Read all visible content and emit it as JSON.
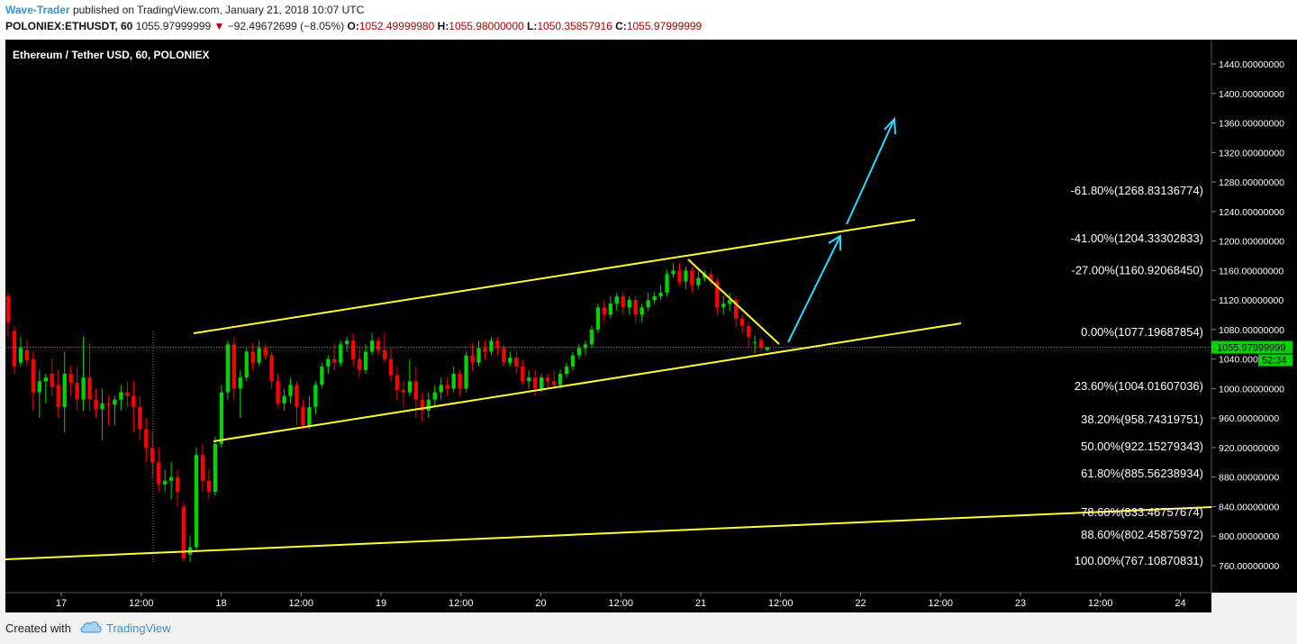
{
  "header": {
    "author": "Wave-Trader",
    "published": "published on TradingView.com, January 21, 2018 10:07 UTC",
    "symbol": "POLONIEX:ETHUSDT, 60",
    "last": "1055.97999999",
    "change_arrow": "▼",
    "change": "−92.49672699 (−8.05%)",
    "o_label": "O:",
    "o": "1052.49999980",
    "h_label": "H:",
    "h": "1055.98000000",
    "l_label": "L:",
    "l": "1050.35857916",
    "c_label": "C:",
    "c": "1055.97999999"
  },
  "chart_title": "Ethereum / Tether USD, 60, POLONIEX",
  "footer": {
    "created_with": "Created with",
    "brand": "TradingView"
  },
  "colors": {
    "up": "#00d400",
    "down": "#ff0000",
    "trendline": "#ffff33",
    "arrow": "#2fd9ff",
    "background": "#000000",
    "price_tag": "#00d400"
  },
  "chart_data": {
    "type": "candlestick",
    "title": "Ethereum / Tether USD, 60, POLONIEX",
    "y_axis": {
      "ticks": [
        "1440.00000000",
        "1400.00000000",
        "1360.00000000",
        "1320.00000000",
        "1280.00000000",
        "1240.00000000",
        "1200.00000000",
        "1160.00000000",
        "1120.00000000",
        "1080.00000000",
        "1040.00000000",
        "1000.00000000",
        "960.00000000",
        "920.00000000",
        "880.00000000",
        "840.00000000",
        "800.00000000",
        "760.00000000"
      ],
      "range": [
        730,
        1470
      ]
    },
    "x_axis": {
      "ticks": [
        "17",
        "12:00",
        "18",
        "12:00",
        "19",
        "12:00",
        "20",
        "12:00",
        "21",
        "12:00",
        "22",
        "12:00",
        "23",
        "12:00",
        "24"
      ]
    },
    "last_price": {
      "label": "1055.97999999",
      "value": 1055.98
    },
    "countdown": {
      "label": "52:34"
    },
    "fib_levels": [
      {
        "label": "-61.80%(1268.83136774)",
        "value": 1268.83
      },
      {
        "label": "-41.00%(1204.33302833)",
        "value": 1204.33
      },
      {
        "label": "-27.00%(1160.92068450)",
        "value": 1160.92
      },
      {
        "label": "0.00%(1077.19687854)",
        "value": 1077.2
      },
      {
        "label": "23.60%(1004.01607036)",
        "value": 1004.02
      },
      {
        "label": "38.20%(958.74319751)",
        "value": 958.74
      },
      {
        "label": "50.00%(922.15279343)",
        "value": 922.15
      },
      {
        "label": "61.80%(885.56238934)",
        "value": 885.56
      },
      {
        "label": "78.60%(833.46757674)",
        "value": 833.47
      },
      {
        "label": "88.60%(802.45875972)",
        "value": 802.46
      },
      {
        "label": "100.00%(767.10870831)",
        "value": 767.11
      }
    ],
    "candles": [
      {
        "o": 1125,
        "c": 1090,
        "h": 1130,
        "l": 1070
      },
      {
        "o": 1078,
        "c": 1030,
        "h": 1085,
        "l": 1020
      },
      {
        "o": 1035,
        "c": 1055,
        "h": 1070,
        "l": 1030
      },
      {
        "o": 1052,
        "c": 1038,
        "h": 1065,
        "l": 1030
      },
      {
        "o": 1040,
        "c": 995,
        "h": 1050,
        "l": 970
      },
      {
        "o": 995,
        "c": 1010,
        "h": 1025,
        "l": 960
      },
      {
        "o": 1010,
        "c": 1015,
        "h": 1020,
        "l": 980
      },
      {
        "o": 1020,
        "c": 1002,
        "h": 1040,
        "l": 990
      },
      {
        "o": 1005,
        "c": 975,
        "h": 1025,
        "l": 960
      },
      {
        "o": 975,
        "c": 1020,
        "h": 1050,
        "l": 940
      },
      {
        "o": 1020,
        "c": 1008,
        "h": 1030,
        "l": 990
      },
      {
        "o": 1008,
        "c": 985,
        "h": 1030,
        "l": 970
      },
      {
        "o": 985,
        "c": 1015,
        "h": 1070,
        "l": 970
      },
      {
        "o": 1015,
        "c": 985,
        "h": 1060,
        "l": 970
      },
      {
        "o": 985,
        "c": 972,
        "h": 1000,
        "l": 960
      },
      {
        "o": 972,
        "c": 980,
        "h": 1000,
        "l": 930
      },
      {
        "o": 980,
        "c": 978,
        "h": 990,
        "l": 950
      },
      {
        "o": 978,
        "c": 985,
        "h": 990,
        "l": 950
      },
      {
        "o": 985,
        "c": 995,
        "h": 1005,
        "l": 970
      },
      {
        "o": 995,
        "c": 990,
        "h": 1010,
        "l": 975
      },
      {
        "o": 990,
        "c": 975,
        "h": 1010,
        "l": 940
      },
      {
        "o": 975,
        "c": 945,
        "h": 990,
        "l": 930
      },
      {
        "o": 945,
        "c": 920,
        "h": 960,
        "l": 900
      },
      {
        "o": 920,
        "c": 900,
        "h": 940,
        "l": 880
      },
      {
        "o": 900,
        "c": 870,
        "h": 920,
        "l": 860
      },
      {
        "o": 870,
        "c": 875,
        "h": 890,
        "l": 860
      },
      {
        "o": 875,
        "c": 880,
        "h": 900,
        "l": 850
      },
      {
        "o": 880,
        "c": 860,
        "h": 890,
        "l": 840
      },
      {
        "o": 840,
        "c": 770,
        "h": 845,
        "l": 765
      },
      {
        "o": 775,
        "c": 785,
        "h": 800,
        "l": 765
      },
      {
        "o": 785,
        "c": 910,
        "h": 920,
        "l": 780
      },
      {
        "o": 910,
        "c": 875,
        "h": 925,
        "l": 860
      },
      {
        "o": 875,
        "c": 860,
        "h": 890,
        "l": 850
      },
      {
        "o": 860,
        "c": 925,
        "h": 935,
        "l": 855
      },
      {
        "o": 925,
        "c": 995,
        "h": 1005,
        "l": 920
      },
      {
        "o": 995,
        "c": 1060,
        "h": 1065,
        "l": 985
      },
      {
        "o": 1060,
        "c": 1000,
        "h": 1070,
        "l": 985
      },
      {
        "o": 1000,
        "c": 1015,
        "h": 1025,
        "l": 960
      },
      {
        "o": 1015,
        "c": 1050,
        "h": 1055,
        "l": 1010
      },
      {
        "o": 1050,
        "c": 1035,
        "h": 1062,
        "l": 1025
      },
      {
        "o": 1035,
        "c": 1055,
        "h": 1065,
        "l": 1030
      },
      {
        "o": 1055,
        "c": 1045,
        "h": 1060,
        "l": 1040
      },
      {
        "o": 1045,
        "c": 1010,
        "h": 1050,
        "l": 1000
      },
      {
        "o": 1010,
        "c": 980,
        "h": 1020,
        "l": 975
      },
      {
        "o": 980,
        "c": 990,
        "h": 1000,
        "l": 970
      },
      {
        "o": 990,
        "c": 1005,
        "h": 1015,
        "l": 980
      },
      {
        "o": 1005,
        "c": 975,
        "h": 1010,
        "l": 950
      },
      {
        "o": 975,
        "c": 950,
        "h": 985,
        "l": 945
      },
      {
        "o": 950,
        "c": 975,
        "h": 990,
        "l": 945
      },
      {
        "o": 975,
        "c": 1005,
        "h": 1010,
        "l": 965
      },
      {
        "o": 1005,
        "c": 1030,
        "h": 1035,
        "l": 1000
      },
      {
        "o": 1030,
        "c": 1040,
        "h": 1045,
        "l": 1020
      },
      {
        "o": 1040,
        "c": 1035,
        "h": 1060,
        "l": 1025
      },
      {
        "o": 1035,
        "c": 1060,
        "h": 1065,
        "l": 1030
      },
      {
        "o": 1060,
        "c": 1065,
        "h": 1070,
        "l": 1050
      },
      {
        "o": 1065,
        "c": 1040,
        "h": 1075,
        "l": 1030
      },
      {
        "o": 1040,
        "c": 1025,
        "h": 1055,
        "l": 1015
      },
      {
        "o": 1025,
        "c": 1050,
        "h": 1060,
        "l": 1020
      },
      {
        "o": 1050,
        "c": 1065,
        "h": 1075,
        "l": 1045
      },
      {
        "o": 1065,
        "c": 1052,
        "h": 1070,
        "l": 1045
      },
      {
        "o": 1052,
        "c": 1040,
        "h": 1075,
        "l": 1035
      },
      {
        "o": 1040,
        "c": 1018,
        "h": 1055,
        "l": 1010
      },
      {
        "o": 1018,
        "c": 998,
        "h": 1030,
        "l": 985
      },
      {
        "o": 998,
        "c": 995,
        "h": 1010,
        "l": 975
      },
      {
        "o": 995,
        "c": 1010,
        "h": 1040,
        "l": 990
      },
      {
        "o": 1010,
        "c": 985,
        "h": 1030,
        "l": 960
      },
      {
        "o": 985,
        "c": 970,
        "h": 995,
        "l": 955
      },
      {
        "o": 970,
        "c": 985,
        "h": 995,
        "l": 960
      },
      {
        "o": 985,
        "c": 995,
        "h": 1005,
        "l": 975
      },
      {
        "o": 995,
        "c": 1005,
        "h": 1015,
        "l": 985
      },
      {
        "o": 1005,
        "c": 1000,
        "h": 1015,
        "l": 990
      },
      {
        "o": 1000,
        "c": 1020,
        "h": 1030,
        "l": 995
      },
      {
        "o": 1020,
        "c": 1000,
        "h": 1025,
        "l": 990
      },
      {
        "o": 1000,
        "c": 1045,
        "h": 1050,
        "l": 995
      },
      {
        "o": 1045,
        "c": 1035,
        "h": 1060,
        "l": 1025
      },
      {
        "o": 1035,
        "c": 1055,
        "h": 1065,
        "l": 1030
      },
      {
        "o": 1055,
        "c": 1050,
        "h": 1065,
        "l": 1040
      },
      {
        "o": 1050,
        "c": 1065,
        "h": 1070,
        "l": 1045
      },
      {
        "o": 1065,
        "c": 1055,
        "h": 1070,
        "l": 1045
      },
      {
        "o": 1055,
        "c": 1035,
        "h": 1060,
        "l": 1030
      },
      {
        "o": 1035,
        "c": 1042,
        "h": 1050,
        "l": 1030
      },
      {
        "o": 1042,
        "c": 1030,
        "h": 1050,
        "l": 1020
      },
      {
        "o": 1030,
        "c": 1010,
        "h": 1040,
        "l": 1005
      },
      {
        "o": 1010,
        "c": 1015,
        "h": 1025,
        "l": 1000
      },
      {
        "o": 1015,
        "c": 1000,
        "h": 1025,
        "l": 990
      },
      {
        "o": 1000,
        "c": 1015,
        "h": 1020,
        "l": 995
      },
      {
        "o": 1015,
        "c": 1010,
        "h": 1020,
        "l": 1000
      },
      {
        "o": 1010,
        "c": 1005,
        "h": 1025,
        "l": 1000
      },
      {
        "o": 1005,
        "c": 1020,
        "h": 1025,
        "l": 1000
      },
      {
        "o": 1020,
        "c": 1030,
        "h": 1035,
        "l": 1015
      },
      {
        "o": 1030,
        "c": 1045,
        "h": 1050,
        "l": 1025
      },
      {
        "o": 1045,
        "c": 1055,
        "h": 1060,
        "l": 1040
      },
      {
        "o": 1055,
        "c": 1060,
        "h": 1065,
        "l": 1045
      },
      {
        "o": 1060,
        "c": 1080,
        "h": 1085,
        "l": 1055
      },
      {
        "o": 1080,
        "c": 1110,
        "h": 1115,
        "l": 1075
      },
      {
        "o": 1110,
        "c": 1100,
        "h": 1120,
        "l": 1090
      },
      {
        "o": 1100,
        "c": 1115,
        "h": 1125,
        "l": 1095
      },
      {
        "o": 1115,
        "c": 1125,
        "h": 1130,
        "l": 1105
      },
      {
        "o": 1125,
        "c": 1110,
        "h": 1130,
        "l": 1100
      },
      {
        "o": 1110,
        "c": 1120,
        "h": 1125,
        "l": 1100
      },
      {
        "o": 1120,
        "c": 1100,
        "h": 1125,
        "l": 1090
      },
      {
        "o": 1100,
        "c": 1110,
        "h": 1115,
        "l": 1090
      },
      {
        "o": 1110,
        "c": 1120,
        "h": 1130,
        "l": 1105
      },
      {
        "o": 1120,
        "c": 1125,
        "h": 1130,
        "l": 1115
      },
      {
        "o": 1125,
        "c": 1130,
        "h": 1140,
        "l": 1120
      },
      {
        "o": 1130,
        "c": 1155,
        "h": 1160,
        "l": 1125
      },
      {
        "o": 1155,
        "c": 1160,
        "h": 1170,
        "l": 1150
      },
      {
        "o": 1160,
        "c": 1145,
        "h": 1170,
        "l": 1140
      },
      {
        "o": 1145,
        "c": 1160,
        "h": 1165,
        "l": 1135
      },
      {
        "o": 1160,
        "c": 1140,
        "h": 1165,
        "l": 1130
      },
      {
        "o": 1140,
        "c": 1150,
        "h": 1160,
        "l": 1135
      },
      {
        "o": 1150,
        "c": 1155,
        "h": 1160,
        "l": 1145
      },
      {
        "o": 1155,
        "c": 1145,
        "h": 1160,
        "l": 1140
      },
      {
        "o": 1145,
        "c": 1110,
        "h": 1150,
        "l": 1100
      },
      {
        "o": 1110,
        "c": 1115,
        "h": 1125,
        "l": 1100
      },
      {
        "o": 1115,
        "c": 1120,
        "h": 1130,
        "l": 1105
      },
      {
        "o": 1120,
        "c": 1095,
        "h": 1125,
        "l": 1085
      },
      {
        "o": 1095,
        "c": 1085,
        "h": 1100,
        "l": 1075
      },
      {
        "o": 1085,
        "c": 1070,
        "h": 1090,
        "l": 1055
      },
      {
        "o": 1062,
        "c": 1063,
        "h": 1072,
        "l": 1048
      },
      {
        "o": 1066,
        "c": 1056,
        "h": 1070,
        "l": 1050
      },
      {
        "o": 1052.5,
        "c": 1055.98,
        "h": 1055.98,
        "l": 1050.36
      }
    ]
  }
}
